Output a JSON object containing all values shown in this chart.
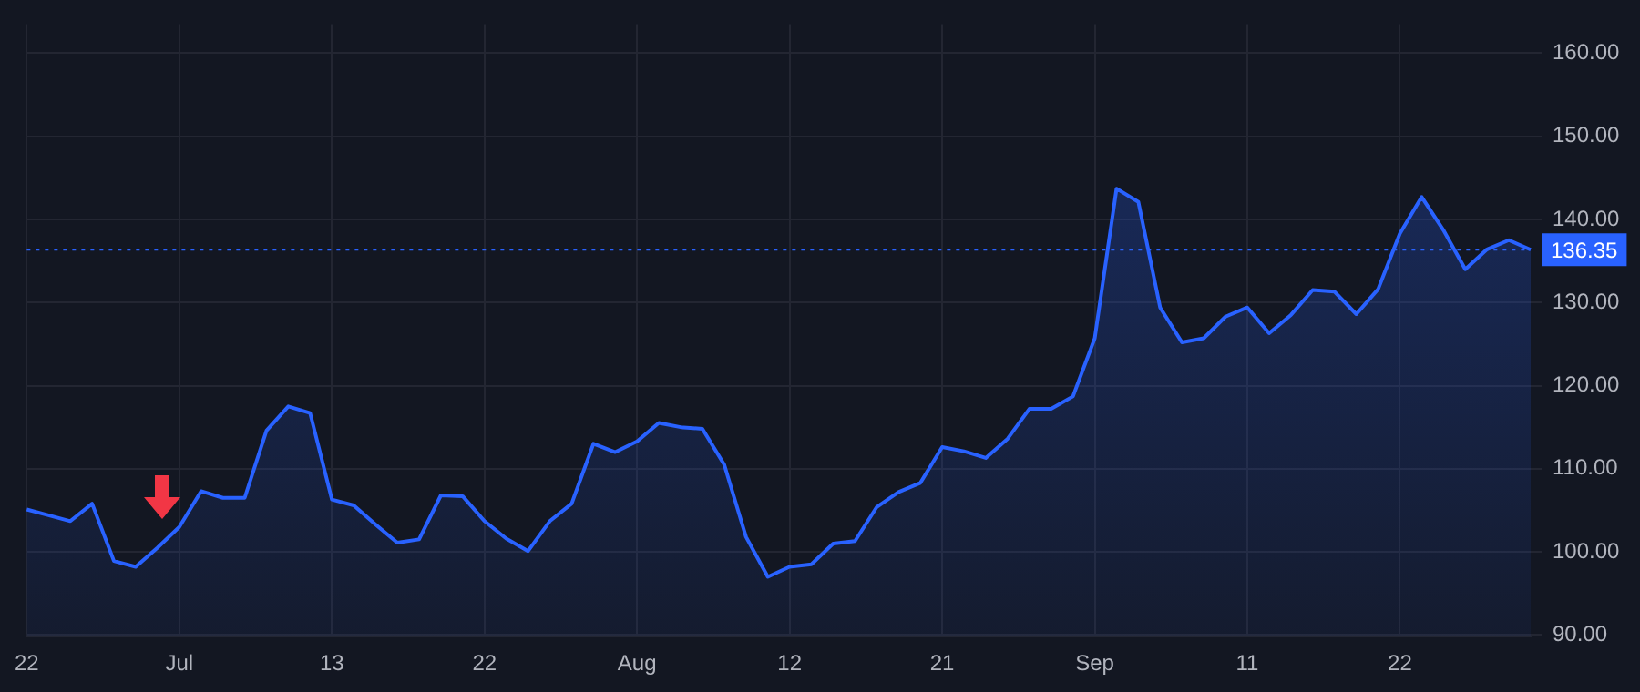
{
  "chart_data": {
    "type": "area",
    "categories": [
      "22",
      null,
      null,
      null,
      null,
      null,
      null,
      "Jul",
      null,
      null,
      null,
      null,
      null,
      null,
      "13",
      null,
      null,
      null,
      null,
      null,
      null,
      "22",
      null,
      null,
      null,
      null,
      null,
      null,
      "Aug",
      null,
      null,
      null,
      null,
      null,
      null,
      "12",
      null,
      null,
      null,
      null,
      null,
      null,
      "21",
      null,
      null,
      null,
      null,
      null,
      null,
      "Sep",
      null,
      null,
      null,
      null,
      null,
      null,
      "11",
      null,
      null,
      null,
      null,
      null,
      null,
      "22",
      null,
      null,
      null,
      null,
      null,
      null
    ],
    "series": [
      {
        "color": "#2962ff",
        "values": [
          105.1,
          104.4,
          103.7,
          105.8,
          98.9,
          98.2,
          100.5,
          103.0,
          107.3,
          106.5,
          106.5,
          114.6,
          117.5,
          116.7,
          106.3,
          105.6,
          103.3,
          101.1,
          101.5,
          106.8,
          106.7,
          103.7,
          101.6,
          100.1,
          103.7,
          105.8,
          113.0,
          112.0,
          113.3,
          115.5,
          115.0,
          114.8,
          110.5,
          101.8,
          97.0,
          98.2,
          98.5,
          101.0,
          101.3,
          105.4,
          107.2,
          108.3,
          112.6,
          112.1,
          111.3,
          113.6,
          117.2,
          117.2,
          118.7,
          125.7,
          143.7,
          142.1,
          129.4,
          125.2,
          125.7,
          128.3,
          129.4,
          126.3,
          128.5,
          131.5,
          131.3,
          128.6,
          131.6,
          138.3,
          142.7,
          138.7,
          134.0,
          136.4,
          137.5,
          136.35
        ]
      }
    ],
    "ylim": [
      89.8,
      163.5
    ],
    "yticks": [
      {
        "value": 90,
        "label": "90.00"
      },
      {
        "value": 100,
        "label": "100.00"
      },
      {
        "value": 110,
        "label": "110.00"
      },
      {
        "value": 120,
        "label": "120.00"
      },
      {
        "value": 130,
        "label": "130.00"
      },
      {
        "value": 140,
        "label": "140.00"
      },
      {
        "value": 150,
        "label": "150.00"
      },
      {
        "value": 160,
        "label": "160.00"
      }
    ],
    "grid": true,
    "marker": "none",
    "line_style": "solid",
    "ref_lines": [
      {
        "axis": "y",
        "value": 136.35,
        "label": "136.35",
        "color": "#2962ff",
        "line_style": "dotted"
      }
    ]
  }
}
